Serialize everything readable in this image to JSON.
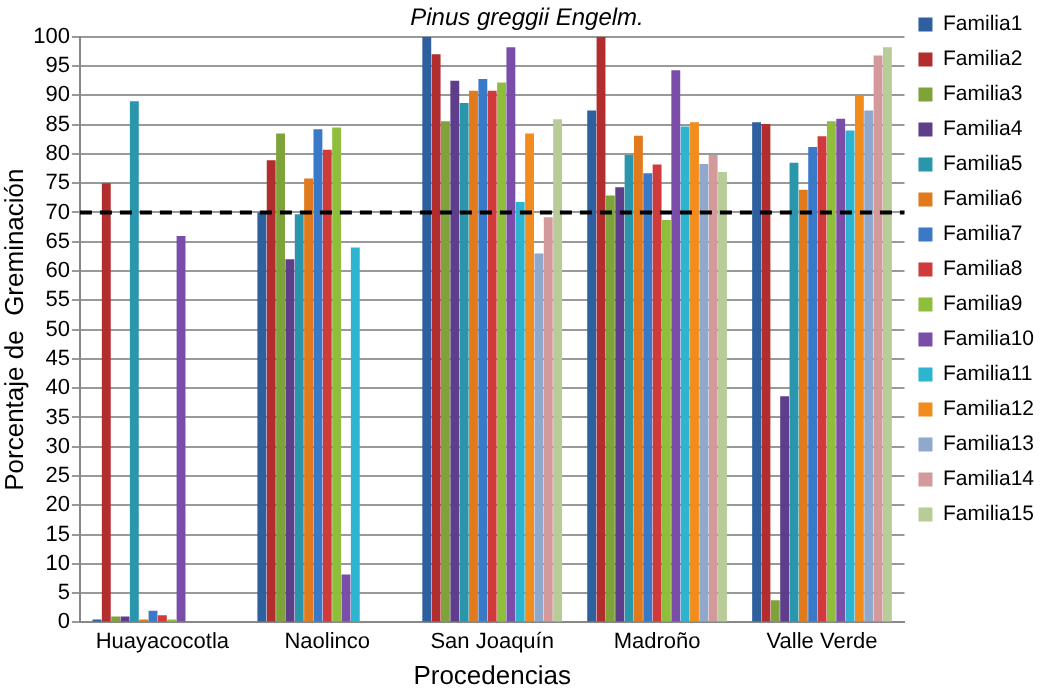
{
  "chart_data": {
    "type": "bar",
    "title": "Pinus greggii Engelm.",
    "xlabel": "Procedencias",
    "ylabel": "Porcentaje de  Greminación",
    "categories": [
      "Huayacocotla",
      "Naolinco",
      "San Joaquín",
      "Madroño",
      "Valle Verde"
    ],
    "series": [
      {
        "name": "Familia1",
        "color": "#2e5f9e",
        "values": [
          0.5,
          70,
          100,
          87.4,
          85.4
        ]
      },
      {
        "name": "Familia2",
        "color": "#b22d2d",
        "values": [
          75,
          78.9,
          97,
          100,
          85.1
        ]
      },
      {
        "name": "Familia3",
        "color": "#7ea33a",
        "values": [
          1,
          83.5,
          85.6,
          72.9,
          3.8
        ]
      },
      {
        "name": "Familia4",
        "color": "#5e3d8a",
        "values": [
          1,
          62,
          92.5,
          74.3,
          38.6
        ]
      },
      {
        "name": "Familia5",
        "color": "#2a96ac",
        "values": [
          89,
          69.7,
          88.7,
          79.8,
          78.5
        ]
      },
      {
        "name": "Familia6",
        "color": "#e07a1c",
        "values": [
          0.5,
          75.8,
          90.8,
          83.1,
          73.9
        ]
      },
      {
        "name": "Familia7",
        "color": "#3a78c8",
        "values": [
          2,
          84.2,
          92.8,
          76.7,
          81.2
        ]
      },
      {
        "name": "Familia8",
        "color": "#d03a3a",
        "values": [
          1.2,
          80.7,
          90.8,
          78.2,
          83
        ]
      },
      {
        "name": "Familia9",
        "color": "#8fbd3c",
        "values": [
          0.5,
          84.5,
          92.2,
          68.7,
          85.6
        ]
      },
      {
        "name": "Familia10",
        "color": "#7a4ea8",
        "values": [
          66,
          8.2,
          98.2,
          94.3,
          86
        ]
      },
      {
        "name": "Familia11",
        "color": "#2cb4d0",
        "values": [
          0,
          64,
          71.8,
          84.7,
          84
        ]
      },
      {
        "name": "Familia12",
        "color": "#f28c1c",
        "values": [
          0,
          0,
          83.5,
          85.4,
          89.9
        ]
      },
      {
        "name": "Familia13",
        "color": "#90a8cc",
        "values": [
          0,
          0,
          63,
          78.3,
          87.4
        ]
      },
      {
        "name": "Familia14",
        "color": "#d4999a",
        "values": [
          0,
          0,
          69.2,
          79.8,
          96.8
        ]
      },
      {
        "name": "Familia15",
        "color": "#b8cc98",
        "values": [
          0,
          0,
          85.9,
          76.9,
          98.2
        ]
      }
    ],
    "ylim": [
      0,
      100
    ],
    "yticks": [
      0,
      5,
      10,
      15,
      20,
      25,
      30,
      35,
      40,
      45,
      50,
      55,
      60,
      65,
      70,
      75,
      80,
      85,
      90,
      95,
      100
    ],
    "grid": "y",
    "legend": "right",
    "ref_lines": [
      {
        "axis": "y",
        "value": 70,
        "color": "#000000",
        "line_style": "dashed"
      }
    ]
  }
}
